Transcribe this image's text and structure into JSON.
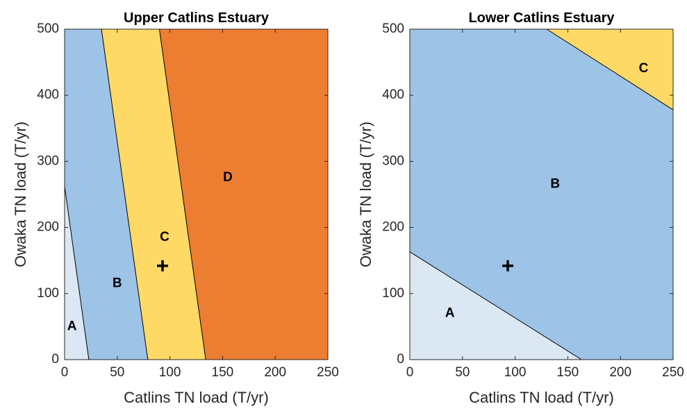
{
  "chart_data": [
    {
      "type": "area",
      "title": "Upper Catlins Estuary",
      "xlabel": "Catlins TN load (T/yr)",
      "ylabel": "Owaka TN load (T/yr)",
      "xlim": [
        0,
        250
      ],
      "ylim": [
        0,
        500
      ],
      "xticks": [
        "0",
        "50",
        "100",
        "150",
        "200",
        "250"
      ],
      "yticks": [
        "0",
        "100",
        "200",
        "300",
        "400",
        "500"
      ],
      "grid": false,
      "boundaries": [
        {
          "between": "A|B",
          "from": [
            0,
            262
          ],
          "to": [
            23,
            0
          ]
        },
        {
          "between": "B|C",
          "from": [
            35,
            500
          ],
          "to": [
            79,
            0
          ]
        },
        {
          "between": "C|D",
          "from": [
            90,
            500
          ],
          "to": [
            134,
            0
          ]
        }
      ],
      "regions": [
        {
          "label": "A",
          "color": "#dce7f4",
          "polygon": [
            [
              0,
              0
            ],
            [
              23,
              0
            ],
            [
              0,
              262
            ]
          ],
          "label_pos": [
            7,
            50
          ]
        },
        {
          "label": "B",
          "color": "#9dc3e6",
          "polygon": [
            [
              0,
              262
            ],
            [
              23,
              0
            ],
            [
              79,
              0
            ],
            [
              35,
              500
            ],
            [
              0,
              500
            ]
          ],
          "label_pos": [
            50,
            115
          ]
        },
        {
          "label": "C",
          "color": "#ffd966",
          "polygon": [
            [
              35,
              500
            ],
            [
              79,
              0
            ],
            [
              134,
              0
            ],
            [
              90,
              500
            ]
          ],
          "label_pos": [
            95,
            185
          ]
        },
        {
          "label": "D",
          "color": "#ed7d31",
          "polygon": [
            [
              90,
              500
            ],
            [
              134,
              0
            ],
            [
              250,
              0
            ],
            [
              250,
              500
            ]
          ],
          "label_pos": [
            155,
            275
          ]
        }
      ],
      "marker": {
        "symbol": "+",
        "x": 93,
        "y": 142
      }
    },
    {
      "type": "area",
      "title": "Lower Catlins Estuary",
      "xlabel": "Catlins TN load (T/yr)",
      "ylabel": "Owaka TN load (T/yr)",
      "xlim": [
        0,
        250
      ],
      "ylim": [
        0,
        500
      ],
      "xticks": [
        "0",
        "50",
        "100",
        "150",
        "200",
        "250"
      ],
      "yticks": [
        "0",
        "100",
        "200",
        "300",
        "400",
        "500"
      ],
      "grid": false,
      "boundaries": [
        {
          "between": "A|B",
          "from": [
            0,
            163
          ],
          "to": [
            163,
            0
          ]
        },
        {
          "between": "B|C",
          "from": [
            130,
            500
          ],
          "to": [
            250,
            378
          ]
        }
      ],
      "regions": [
        {
          "label": "A",
          "color": "#dce7f4",
          "polygon": [
            [
              0,
              0
            ],
            [
              163,
              0
            ],
            [
              0,
              163
            ]
          ],
          "label_pos": [
            38,
            70
          ]
        },
        {
          "label": "B",
          "color": "#9dc3e6",
          "polygon": [
            [
              0,
              163
            ],
            [
              163,
              0
            ],
            [
              250,
              0
            ],
            [
              250,
              378
            ],
            [
              130,
              500
            ],
            [
              0,
              500
            ]
          ],
          "label_pos": [
            138,
            265
          ]
        },
        {
          "label": "C",
          "color": "#ffd966",
          "polygon": [
            [
              130,
              500
            ],
            [
              250,
              500
            ],
            [
              250,
              378
            ]
          ],
          "label_pos": [
            222,
            440
          ]
        }
      ],
      "marker": {
        "symbol": "+",
        "x": 93,
        "y": 142
      }
    }
  ]
}
